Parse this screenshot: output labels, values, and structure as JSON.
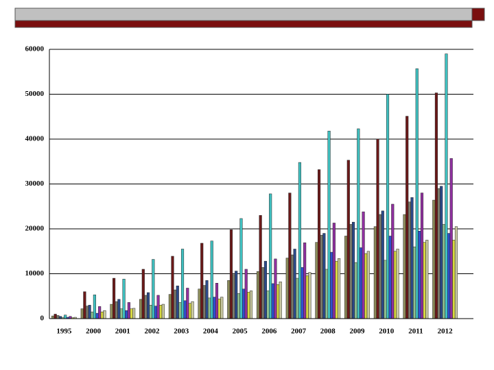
{
  "chart_data": {
    "type": "bar",
    "categories": [
      "1995",
      "2000",
      "2001",
      "2002",
      "2003",
      "2004",
      "2005",
      "2006",
      "2007",
      "2008",
      "2009",
      "2010",
      "2011",
      "2012"
    ],
    "series": [
      {
        "color": "#8b8b5a",
        "values": [
          600,
          2200,
          3200,
          4300,
          5400,
          6600,
          8500,
          10500,
          13500,
          17000,
          18400,
          20500,
          23200,
          26400
        ]
      },
      {
        "color": "#6b1a1a",
        "values": [
          1000,
          6000,
          9000,
          11000,
          13900,
          16800,
          19800,
          23000,
          28000,
          33200,
          35300,
          40000,
          45100,
          50300
        ]
      },
      {
        "color": "#7a7a6a",
        "values": [
          700,
          2800,
          3800,
          5200,
          6400,
          7400,
          9800,
          11400,
          14200,
          18600,
          21000,
          23200,
          26000,
          29000
        ]
      },
      {
        "color": "#2c4a8a",
        "values": [
          500,
          3000,
          4300,
          5800,
          7300,
          8500,
          10600,
          12800,
          15500,
          19000,
          21500,
          24000,
          27000,
          29500
        ]
      },
      {
        "color": "#90c090",
        "values": [
          300,
          1500,
          2200,
          3000,
          3600,
          4600,
          5600,
          6200,
          9000,
          11000,
          12500,
          13000,
          16000,
          21000
        ]
      },
      {
        "color": "#40c0c0",
        "values": [
          800,
          5300,
          8800,
          13200,
          15500,
          17300,
          22300,
          27800,
          34800,
          41800,
          42300,
          50000,
          55700,
          59000
        ]
      },
      {
        "color": "#3050d0",
        "values": [
          300,
          1200,
          1800,
          2800,
          4000,
          4800,
          6600,
          7800,
          11400,
          14800,
          15800,
          18400,
          19500,
          19000
        ]
      },
      {
        "color": "#9030a0",
        "values": [
          500,
          2700,
          3600,
          5200,
          6800,
          7900,
          11000,
          13300,
          16900,
          21300,
          23800,
          25500,
          28000,
          35700
        ]
      },
      {
        "color": "#d8d840",
        "values": [
          200,
          1500,
          2200,
          3000,
          3400,
          4400,
          5900,
          7600,
          9600,
          12800,
          14500,
          15000,
          17000,
          17500
        ]
      },
      {
        "color": "#c8c8a0",
        "values": [
          300,
          1800,
          2300,
          3200,
          3800,
          4800,
          6200,
          8200,
          10300,
          13400,
          15000,
          15500,
          17500,
          20500
        ]
      }
    ],
    "ylim": [
      0,
      60000
    ],
    "yticks": [
      0,
      10000,
      20000,
      30000,
      40000,
      50000,
      60000
    ],
    "grid": true
  }
}
